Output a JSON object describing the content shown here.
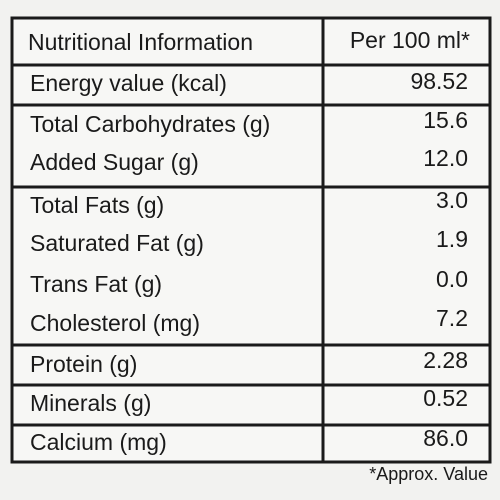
{
  "table": {
    "header": [
      "Nutritional Information",
      "Per 100 ml*"
    ],
    "rows": [
      [
        "Energy value (kcal)",
        "98.52"
      ],
      [
        "Total Carbohydrates (g)",
        "15.6"
      ],
      [
        "Added Sugar (g)",
        "12.0"
      ],
      [
        "Total Fats (g)",
        "3.0"
      ],
      [
        "Saturated Fat (g)",
        "1.9"
      ],
      [
        "Trans Fat (g)",
        "0.0"
      ],
      [
        "Cholesterol (mg)",
        "7.2"
      ],
      [
        "Protein (g)",
        "2.28"
      ],
      [
        "Minerals (g)",
        "0.52"
      ],
      [
        "Calcium (mg)",
        "86.0"
      ]
    ]
  },
  "footnote": "*Approx. Value"
}
